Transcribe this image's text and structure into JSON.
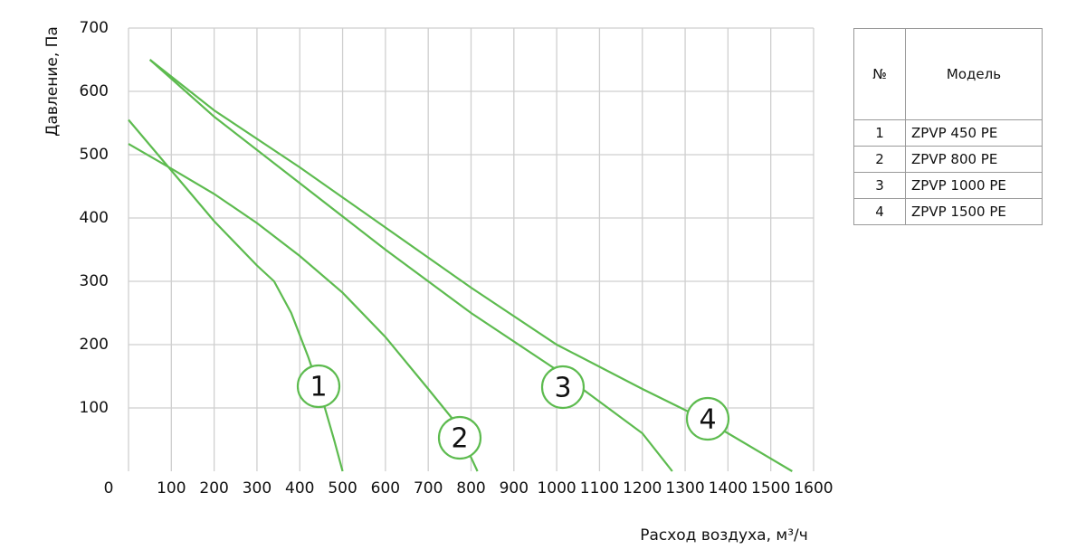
{
  "chart_data": {
    "type": "line",
    "y_label": "Давление, Па",
    "x_label": "Расход воздуха, м³/ч",
    "xlim": [
      0,
      1600
    ],
    "ylim": [
      0,
      700
    ],
    "xticks": [
      0,
      100,
      200,
      300,
      400,
      500,
      600,
      700,
      800,
      900,
      1000,
      1100,
      1200,
      1300,
      1400,
      1500,
      1600
    ],
    "yticks": [
      100,
      200,
      300,
      400,
      500,
      600,
      700
    ],
    "grid": true,
    "series": [
      {
        "name": "1",
        "color": "#5dbb4f",
        "x": [
          0,
          100,
          200,
          300,
          340,
          380,
          420,
          450,
          480,
          500
        ],
        "values": [
          555,
          475,
          395,
          325,
          300,
          250,
          180,
          120,
          50,
          0
        ]
      },
      {
        "name": "2",
        "color": "#5dbb4f",
        "x": [
          0,
          100,
          200,
          300,
          400,
          500,
          600,
          700,
          760,
          815
        ],
        "values": [
          517,
          478,
          438,
          392,
          340,
          282,
          212,
          130,
          80,
          0
        ]
      },
      {
        "name": "3",
        "color": "#5dbb4f",
        "x": [
          50,
          200,
          400,
          600,
          800,
          1000,
          1200,
          1270
        ],
        "values": [
          650,
          560,
          455,
          350,
          250,
          160,
          60,
          0
        ]
      },
      {
        "name": "4",
        "color": "#5dbb4f",
        "x": [
          50,
          200,
          400,
          600,
          800,
          1000,
          1200,
          1350,
          1550
        ],
        "values": [
          650,
          570,
          480,
          385,
          290,
          200,
          130,
          80,
          0
        ]
      }
    ]
  },
  "table": {
    "header": [
      "№",
      "Модель"
    ],
    "rows": [
      [
        "1",
        "ZPVP 450 PE"
      ],
      [
        "2",
        "ZPVP 800 PE"
      ],
      [
        "3",
        "ZPVP 1000 PE"
      ],
      [
        "4",
        "ZPVP 1500 PE"
      ]
    ]
  }
}
